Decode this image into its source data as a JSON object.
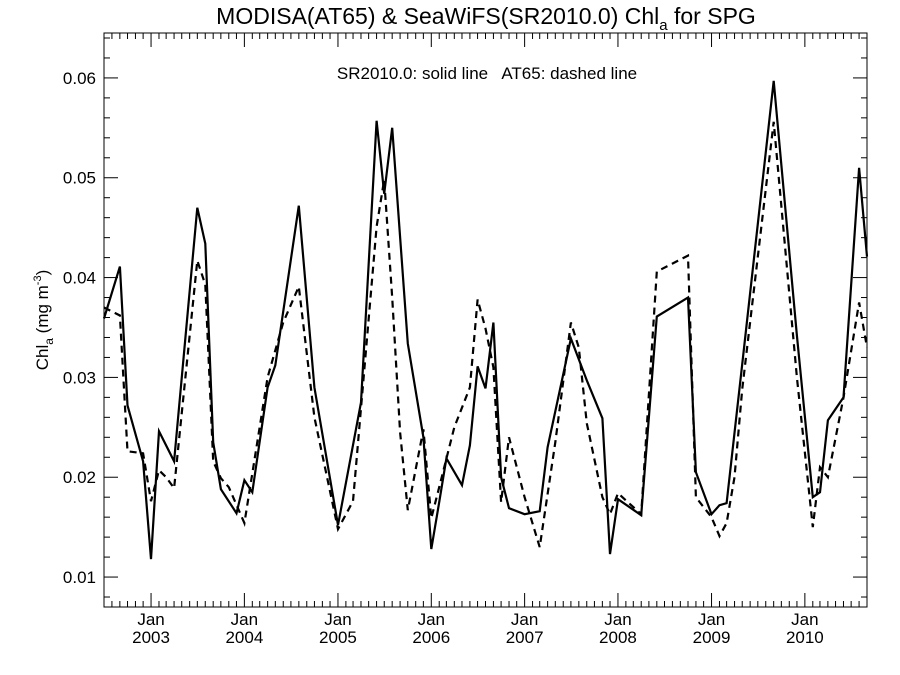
{
  "chart_data": {
    "type": "line",
    "title": {
      "prefix": "MODISA(AT65) & SeaWiFS(SR2010.0)  Chl",
      "subscript": "a",
      "suffix": " for SPG"
    },
    "ylabel": {
      "prefix": "Chl",
      "subscript": "a",
      "middle": " (mg m",
      "superscript": "-3",
      "suffix": ")"
    },
    "annotation": "SR2010.0: solid line   AT65: dashed line",
    "x_range": [
      "2002-07-01",
      "2010-09-01"
    ],
    "ylim": [
      0.007,
      0.0645
    ],
    "yticks": [
      0.01,
      0.02,
      0.03,
      0.04,
      0.05,
      0.06
    ],
    "ytick_labels": [
      "0.01",
      "0.02",
      "0.03",
      "0.04",
      "0.05",
      "0.06"
    ],
    "xticks": [
      {
        "date": "2003-01-01",
        "month": "Jan",
        "year": "2003"
      },
      {
        "date": "2004-01-01",
        "month": "Jan",
        "year": "2004"
      },
      {
        "date": "2005-01-01",
        "month": "Jan",
        "year": "2005"
      },
      {
        "date": "2006-01-01",
        "month": "Jan",
        "year": "2006"
      },
      {
        "date": "2007-01-01",
        "month": "Jan",
        "year": "2007"
      },
      {
        "date": "2008-01-01",
        "month": "Jan",
        "year": "2008"
      },
      {
        "date": "2009-01-01",
        "month": "Jan",
        "year": "2009"
      },
      {
        "date": "2010-01-01",
        "month": "Jan",
        "year": "2010"
      }
    ],
    "grid": false,
    "series": [
      {
        "name": "SR2010.0",
        "line_style": "solid",
        "color": "#000000",
        "points": [
          [
            "2002-07-01",
            0.0359
          ],
          [
            "2002-09-01",
            0.0411
          ],
          [
            "2002-10-01",
            0.0272
          ],
          [
            "2002-12-01",
            0.0216
          ],
          [
            "2003-01-01",
            0.0118
          ],
          [
            "2003-02-01",
            0.0246
          ],
          [
            "2003-04-01",
            0.0216
          ],
          [
            "2003-07-01",
            0.047
          ],
          [
            "2003-08-01",
            0.0434
          ],
          [
            "2003-09-01",
            0.0235
          ],
          [
            "2003-10-01",
            0.0188
          ],
          [
            "2003-12-01",
            0.0164
          ],
          [
            "2004-01-01",
            0.0197
          ],
          [
            "2004-02-01",
            0.0185
          ],
          [
            "2004-04-01",
            0.029
          ],
          [
            "2004-05-01",
            0.0312
          ],
          [
            "2004-08-01",
            0.0472
          ],
          [
            "2004-10-01",
            0.029
          ],
          [
            "2005-01-01",
            0.0152
          ],
          [
            "2005-04-01",
            0.0275
          ],
          [
            "2005-06-01",
            0.0557
          ],
          [
            "2005-07-01",
            0.0484
          ],
          [
            "2005-08-01",
            0.055
          ],
          [
            "2005-10-01",
            0.0334
          ],
          [
            "2005-12-01",
            0.024
          ],
          [
            "2006-01-01",
            0.0128
          ],
          [
            "2006-02-01",
            0.0175
          ],
          [
            "2006-03-01",
            0.0219
          ],
          [
            "2006-05-01",
            0.0192
          ],
          [
            "2006-06-01",
            0.0232
          ],
          [
            "2006-07-01",
            0.0311
          ],
          [
            "2006-08-01",
            0.0289
          ],
          [
            "2006-09-01",
            0.0355
          ],
          [
            "2006-10-01",
            0.02
          ],
          [
            "2006-11-01",
            0.0169
          ],
          [
            "2007-01-01",
            0.0163
          ],
          [
            "2007-03-01",
            0.0166
          ],
          [
            "2007-04-01",
            0.023
          ],
          [
            "2007-07-01",
            0.0339
          ],
          [
            "2007-09-01",
            0.0297
          ],
          [
            "2007-11-01",
            0.0259
          ],
          [
            "2007-12-01",
            0.0123
          ],
          [
            "2008-01-01",
            0.0178
          ],
          [
            "2008-04-01",
            0.0162
          ],
          [
            "2008-06-01",
            0.0361
          ],
          [
            "2008-10-01",
            0.038
          ],
          [
            "2008-11-01",
            0.0205
          ],
          [
            "2009-01-01",
            0.0163
          ],
          [
            "2009-02-01",
            0.0172
          ],
          [
            "2009-03-01",
            0.0174
          ],
          [
            "2009-05-01",
            0.0313
          ],
          [
            "2009-09-01",
            0.0597
          ],
          [
            "2009-12-01",
            0.0342
          ],
          [
            "2010-02-01",
            0.018
          ],
          [
            "2010-03-01",
            0.0185
          ],
          [
            "2010-04-01",
            0.0257
          ],
          [
            "2010-06-01",
            0.028
          ],
          [
            "2010-08-01",
            0.051
          ],
          [
            "2010-09-01",
            0.0421
          ]
        ]
      },
      {
        "name": "AT65",
        "line_style": "dashed",
        "color": "#000000",
        "points": [
          [
            "2002-07-01",
            0.037
          ],
          [
            "2002-09-01",
            0.0362
          ],
          [
            "2002-10-01",
            0.0226
          ],
          [
            "2002-12-01",
            0.0224
          ],
          [
            "2003-01-01",
            0.0176
          ],
          [
            "2003-02-01",
            0.0207
          ],
          [
            "2003-03-01",
            0.02
          ],
          [
            "2003-04-01",
            0.0189
          ],
          [
            "2003-07-01",
            0.0417
          ],
          [
            "2003-08-01",
            0.0393
          ],
          [
            "2003-09-01",
            0.0216
          ],
          [
            "2003-10-01",
            0.0199
          ],
          [
            "2003-11-01",
            0.019
          ],
          [
            "2004-01-01",
            0.0154
          ],
          [
            "2004-04-01",
            0.03
          ],
          [
            "2004-06-01",
            0.0355
          ],
          [
            "2004-08-01",
            0.0391
          ],
          [
            "2004-10-01",
            0.026
          ],
          [
            "2005-01-01",
            0.0148
          ],
          [
            "2005-03-01",
            0.0176
          ],
          [
            "2005-06-01",
            0.0451
          ],
          [
            "2005-07-01",
            0.0498
          ],
          [
            "2005-08-01",
            0.038
          ],
          [
            "2005-09-01",
            0.0245
          ],
          [
            "2005-10-01",
            0.0167
          ],
          [
            "2005-12-01",
            0.0248
          ],
          [
            "2006-01-01",
            0.0159
          ],
          [
            "2006-02-01",
            0.019
          ],
          [
            "2006-04-01",
            0.025
          ],
          [
            "2006-06-01",
            0.029
          ],
          [
            "2006-07-01",
            0.0378
          ],
          [
            "2006-08-01",
            0.0349
          ],
          [
            "2006-09-01",
            0.031
          ],
          [
            "2006-10-01",
            0.0175
          ],
          [
            "2006-11-01",
            0.024
          ],
          [
            "2007-01-01",
            0.018
          ],
          [
            "2007-03-01",
            0.013
          ],
          [
            "2007-05-01",
            0.0235
          ],
          [
            "2007-07-01",
            0.0355
          ],
          [
            "2007-08-01",
            0.033
          ],
          [
            "2007-09-01",
            0.0254
          ],
          [
            "2007-11-01",
            0.018
          ],
          [
            "2007-12-01",
            0.0163
          ],
          [
            "2008-01-01",
            0.0184
          ],
          [
            "2008-04-01",
            0.0163
          ],
          [
            "2008-06-01",
            0.0406
          ],
          [
            "2008-10-01",
            0.0422
          ],
          [
            "2008-11-01",
            0.018
          ],
          [
            "2009-01-01",
            0.016
          ],
          [
            "2009-02-01",
            0.0141
          ],
          [
            "2009-03-01",
            0.0154
          ],
          [
            "2009-04-01",
            0.02
          ],
          [
            "2009-05-01",
            0.0288
          ],
          [
            "2009-09-01",
            0.0556
          ],
          [
            "2009-12-01",
            0.03
          ],
          [
            "2010-02-01",
            0.015
          ],
          [
            "2010-03-01",
            0.021
          ],
          [
            "2010-04-01",
            0.02
          ],
          [
            "2010-06-01",
            0.028
          ],
          [
            "2010-08-01",
            0.0375
          ],
          [
            "2010-09-01",
            0.033
          ]
        ]
      }
    ]
  }
}
